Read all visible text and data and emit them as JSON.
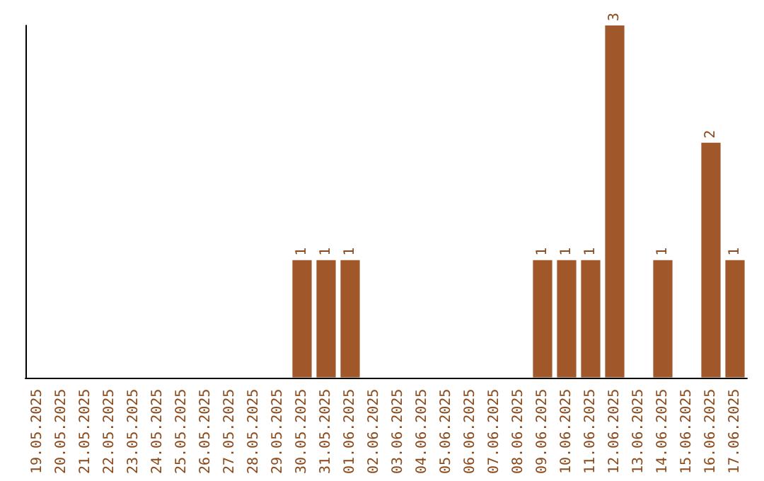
{
  "chart_data": {
    "type": "bar",
    "categories": [
      "19.05.2025",
      "20.05.2025",
      "21.05.2025",
      "22.05.2025",
      "23.05.2025",
      "24.05.2025",
      "25.05.2025",
      "26.05.2025",
      "27.05.2025",
      "28.05.2025",
      "29.05.2025",
      "30.05.2025",
      "31.05.2025",
      "01.06.2025",
      "02.06.2025",
      "03.06.2025",
      "04.06.2025",
      "05.06.2025",
      "06.06.2025",
      "07.06.2025",
      "08.06.2025",
      "09.06.2025",
      "10.06.2025",
      "11.06.2025",
      "12.06.2025",
      "13.06.2025",
      "14.06.2025",
      "15.06.2025",
      "16.06.2025",
      "17.06.2025"
    ],
    "values": [
      0,
      0,
      0,
      0,
      0,
      0,
      0,
      0,
      0,
      0,
      0,
      1,
      1,
      1,
      0,
      0,
      0,
      0,
      0,
      0,
      0,
      1,
      1,
      1,
      3,
      0,
      1,
      0,
      2,
      1
    ],
    "value_labels": [
      null,
      null,
      null,
      null,
      null,
      null,
      null,
      null,
      null,
      null,
      null,
      "1",
      "1",
      "1",
      null,
      null,
      null,
      null,
      null,
      null,
      null,
      "1",
      "1",
      "1",
      "3",
      null,
      "1",
      null,
      "2",
      "1"
    ],
    "color": "#a0582a",
    "tick_labels": "x"
  }
}
